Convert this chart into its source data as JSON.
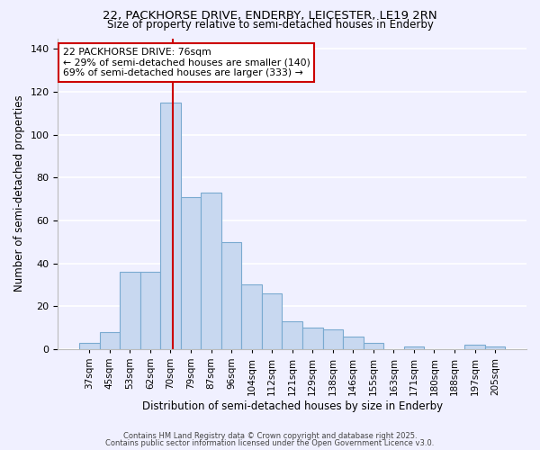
{
  "title_line1": "22, PACKHORSE DRIVE, ENDERBY, LEICESTER, LE19 2RN",
  "title_line2": "Size of property relative to semi-detached houses in Enderby",
  "xlabel": "Distribution of semi-detached houses by size in Enderby",
  "ylabel": "Number of semi-detached properties",
  "bin_labels": [
    "37sqm",
    "45sqm",
    "53sqm",
    "62sqm",
    "70sqm",
    "79sqm",
    "87sqm",
    "96sqm",
    "104sqm",
    "112sqm",
    "121sqm",
    "129sqm",
    "138sqm",
    "146sqm",
    "155sqm",
    "163sqm",
    "171sqm",
    "180sqm",
    "188sqm",
    "197sqm",
    "205sqm"
  ],
  "bar_heights": [
    3,
    8,
    36,
    36,
    115,
    71,
    73,
    50,
    30,
    26,
    13,
    10,
    9,
    6,
    3,
    0,
    1,
    0,
    0,
    2,
    1
  ],
  "bar_color": "#c8d8f0",
  "bar_edge_color": "#7aaad0",
  "highlight_bar_index": 4,
  "property_line_color": "#cc0000",
  "annotation_text": "22 PACKHORSE DRIVE: 76sqm\n← 29% of semi-detached houses are smaller (140)\n69% of semi-detached houses are larger (333) →",
  "annotation_box_color": "#ffffff",
  "annotation_box_edge": "#cc0000",
  "ylim": [
    0,
    145
  ],
  "yticks": [
    0,
    20,
    40,
    60,
    80,
    100,
    120,
    140
  ],
  "footer_line1": "Contains HM Land Registry data © Crown copyright and database right 2025.",
  "footer_line2": "Contains public sector information licensed under the Open Government Licence v3.0.",
  "background_color": "#f0f0ff",
  "grid_color": "#ffffff"
}
